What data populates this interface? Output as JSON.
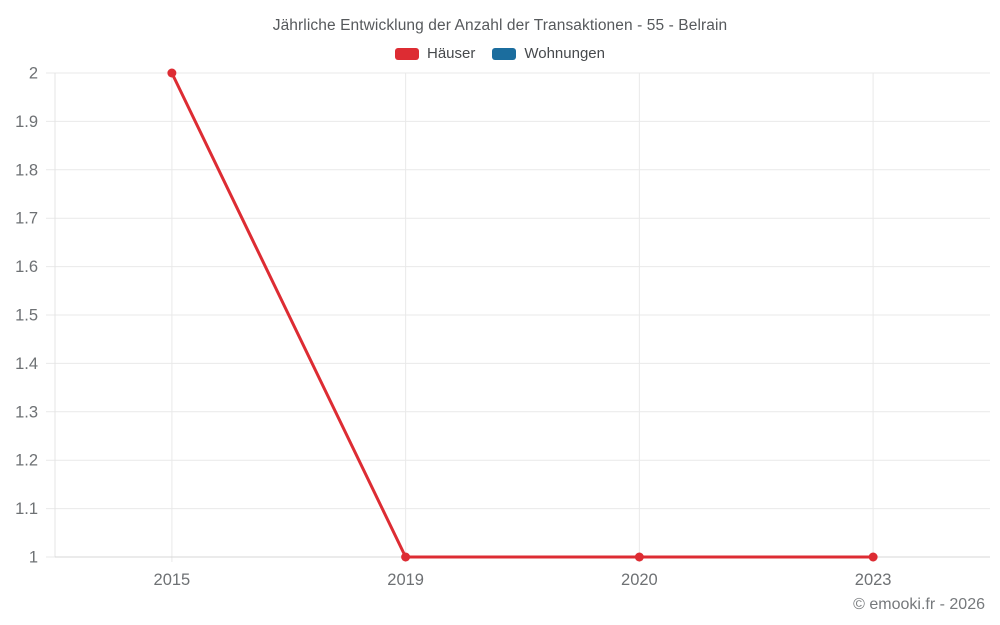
{
  "header": {
    "title": "Jährliche Entwicklung der Anzahl der Transaktionen - 55 - Belrain"
  },
  "footer": {
    "attribution": "© emooki.fr - 2026"
  },
  "chart_data": {
    "type": "line",
    "title": "Jährliche Entwicklung der Anzahl der Transaktionen - 55 - Belrain",
    "x_axis_type": "category",
    "categories": [
      "2015",
      "2019",
      "2020",
      "2023"
    ],
    "series": [
      {
        "name": "Häuser",
        "slug": "haeuser",
        "color": "#dd2c33",
        "values": [
          2,
          1,
          1,
          1
        ]
      },
      {
        "name": "Wohnungen",
        "slug": "wohnungen",
        "color": "#1b6d9e",
        "values": []
      }
    ],
    "xlabel": "",
    "ylabel": "",
    "ylim": [
      1,
      2
    ],
    "ytick_labels": [
      "2",
      "1.9",
      "1.8",
      "1.7",
      "1.6",
      "1.5",
      "1.4",
      "1.3",
      "1.2",
      "1.1",
      "1"
    ],
    "grid": true,
    "legend_position": "top"
  }
}
